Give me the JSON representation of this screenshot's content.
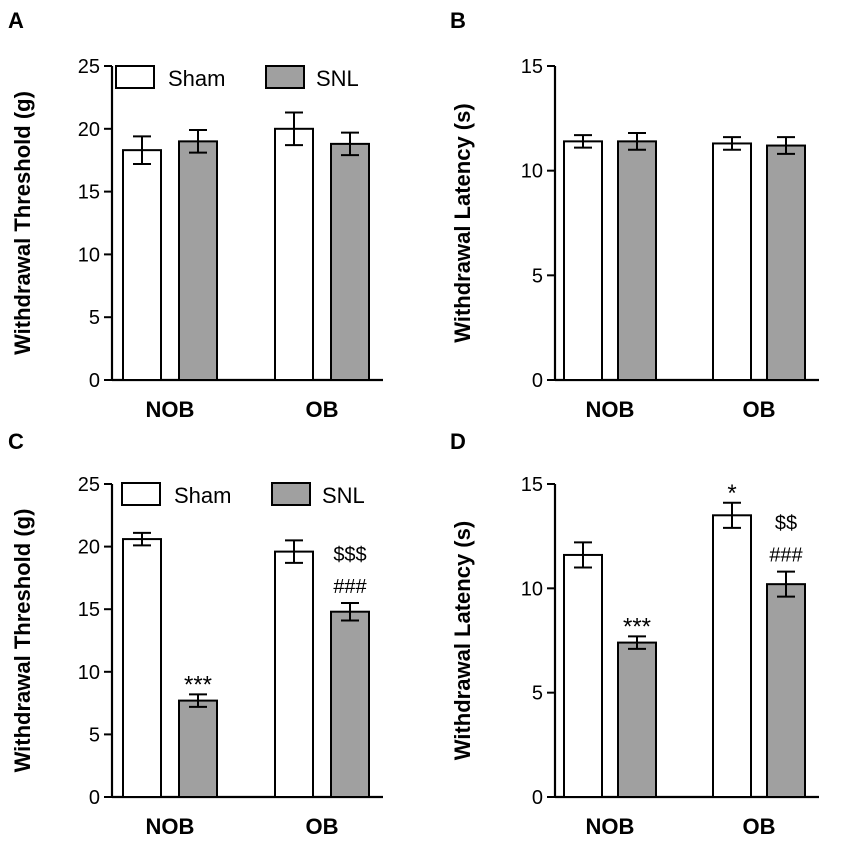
{
  "colors": {
    "sham": "#ffffff",
    "snl": "#a0a0a0",
    "stroke": "#000000"
  },
  "legend": {
    "sham": "Sham",
    "snl": "SNL"
  },
  "chart_data": [
    {
      "panel": "A",
      "type": "bar",
      "categories": [
        "NOB",
        "OB"
      ],
      "series": [
        {
          "name": "Sham",
          "values": [
            18.3,
            20.0
          ],
          "errors": [
            1.1,
            1.3
          ],
          "annotations": [
            "",
            ""
          ]
        },
        {
          "name": "SNL",
          "values": [
            19.0,
            18.8
          ],
          "errors": [
            0.9,
            0.9
          ],
          "annotations": [
            "",
            ""
          ]
        }
      ],
      "ylabel": "Withdrawal Threshold (g)",
      "ylim": [
        0,
        25
      ],
      "yticks": [
        0,
        5,
        10,
        15,
        20,
        25
      ],
      "legend": true
    },
    {
      "panel": "B",
      "type": "bar",
      "categories": [
        "NOB",
        "OB"
      ],
      "series": [
        {
          "name": "Sham",
          "values": [
            11.4,
            11.3
          ],
          "errors": [
            0.3,
            0.3
          ],
          "annotations": [
            "",
            ""
          ]
        },
        {
          "name": "SNL",
          "values": [
            11.4,
            11.2
          ],
          "errors": [
            0.4,
            0.4
          ],
          "annotations": [
            "",
            ""
          ]
        }
      ],
      "ylabel": "Withdrawal Latency (s)",
      "ylim": [
        0,
        15
      ],
      "yticks": [
        0,
        5,
        10,
        15
      ],
      "legend": false
    },
    {
      "panel": "C",
      "type": "bar",
      "categories": [
        "NOB",
        "OB"
      ],
      "series": [
        {
          "name": "Sham",
          "values": [
            20.6,
            19.6
          ],
          "errors": [
            0.5,
            0.9
          ],
          "annotations": [
            "",
            ""
          ]
        },
        {
          "name": "SNL",
          "values": [
            7.7,
            14.8
          ],
          "errors": [
            0.5,
            0.7
          ],
          "annotations": [
            "***",
            "$$$\n###"
          ]
        }
      ],
      "ylabel": "Withdrawal Threshold (g)",
      "ylim": [
        0,
        25
      ],
      "yticks": [
        0,
        5,
        10,
        15,
        20,
        25
      ],
      "legend": true
    },
    {
      "panel": "D",
      "type": "bar",
      "categories": [
        "NOB",
        "OB"
      ],
      "series": [
        {
          "name": "Sham",
          "values": [
            11.6,
            13.5
          ],
          "errors": [
            0.6,
            0.6
          ],
          "annotations": [
            "",
            "*"
          ]
        },
        {
          "name": "SNL",
          "values": [
            7.4,
            10.2
          ],
          "errors": [
            0.3,
            0.6
          ],
          "annotations": [
            "***",
            "$$\n###"
          ]
        }
      ],
      "ylabel": "Withdrawal Latency (s)",
      "ylim": [
        0,
        15
      ],
      "yticks": [
        0,
        5,
        10,
        15
      ],
      "legend": false
    }
  ]
}
